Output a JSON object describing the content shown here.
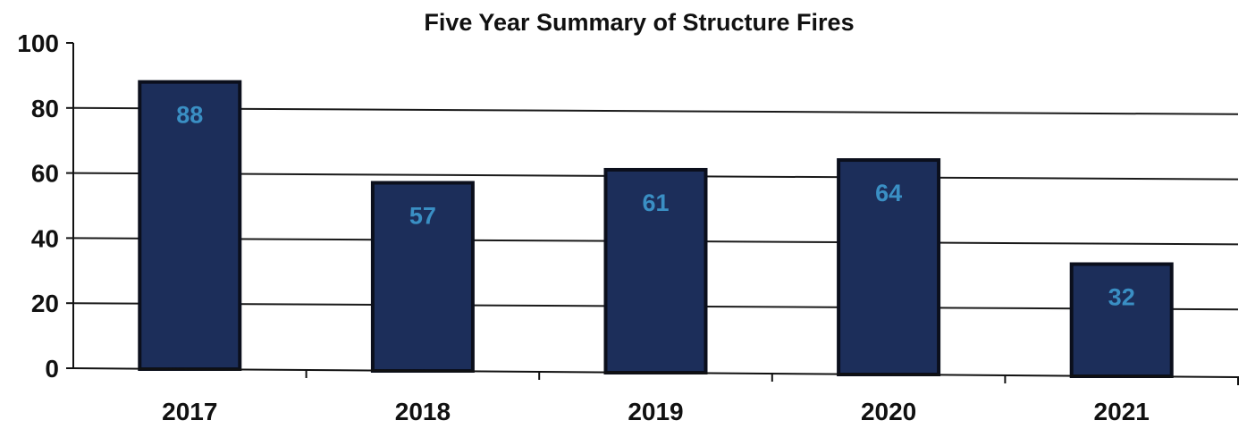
{
  "chart_data": {
    "type": "bar",
    "title": "Five Year Summary of Structure Fires",
    "xlabel": "",
    "ylabel": "",
    "categories": [
      "2017",
      "2018",
      "2019",
      "2020",
      "2021"
    ],
    "values": [
      88,
      57,
      61,
      64,
      32
    ],
    "data_labels": [
      "88",
      "57",
      "61",
      "64",
      "32"
    ],
    "ylim": [
      0,
      100
    ],
    "yticks": [
      0,
      20,
      40,
      60,
      80,
      100
    ],
    "ytick_labels": [
      "0",
      "20",
      "40",
      "60",
      "80",
      "100"
    ],
    "grid": true,
    "legend": "none",
    "colors": {
      "bar_fill": "#1c2e5a",
      "bar_edge": "#0b0f1c",
      "value_label": "#3a8fc4",
      "gridline": "#1a1a1a",
      "axis": "#111111"
    }
  }
}
